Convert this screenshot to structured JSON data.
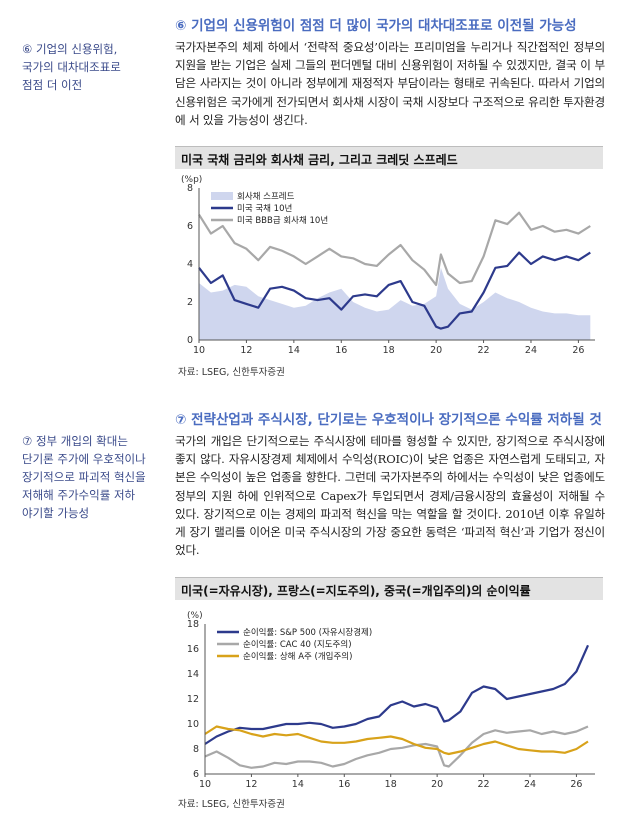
{
  "section1": {
    "heading": "⑥ 기업의 신용위험이 점점 더 많이 국가의 대차대조표로 이전될 가능성",
    "side_note": [
      "⑥ 기업의 신용위험,",
      "국가의 대차대조표로",
      "점점 더 이전"
    ],
    "body": "국가자본주의 체제 하에서 ‘전략적 중요성’이라는 프리미엄을 누리거나 직간접적인 정부의 지원을 받는 기업은 실제 그들의 펀더멘털 대비 신용위험이 저하될 수 있겠지만, 결국 이 부담은 사라지는 것이 아니라 정부에게 재정적자 부담이라는 형태로 귀속된다. 따라서 기업의 신용위험은 국가에게 전가되면서 회사채 시장이 국채 시장보다 구조적으로 유리한 투자환경에 서 있을 가능성이 생긴다."
  },
  "chart1": {
    "title": "미국 국채 금리와 회사채 금리, 그리고 크레딧 스프레드",
    "source": "자료: LSEG, 신한투자증권"
  },
  "section2": {
    "heading": "⑦ 전략산업과 주식시장, 단기로는 우호적이나 장기적으론 수익률 저하될 것",
    "side_note": [
      "⑦ 정부 개입의 확대는",
      "단기론 주가에 우호적이나",
      "장기적으로 파괴적 혁신을",
      "저해해 주가수익률 저하",
      "야기할 가능성"
    ],
    "body": "국가의 개입은 단기적으로는 주식시장에 테마를 형성할 수 있지만, 장기적으로 주식시장에 좋지 않다. 자유시장경제 체제에서 수익성(ROIC)이 낮은 업종은 자연스럽게 도태되고, 자본은 수익성이 높은 업종을 향한다. 그런데 국가자본주의 하에서는 수익성이 낮은 업종에도 정부의 지원 하에 인위적으로 Capex가 투입되면서 경제/금융시장의 효율성이 저해될 수 있다. 장기적으로 이는 경제의 파괴적 혁신을 막는 역할을 할 것이다. 2010년 이후 유일하게 장기 랠리를 이어온 미국 주식시장의 가장 중요한 동력은 ‘파괴적 혁신’과 기업가 정신이었다."
  },
  "chart2": {
    "title": "미국(=자유시장), 프랑스(=지도주의), 중국(=개입주의)의 순이익률",
    "source": "자료: LSEG, 신한투자증권"
  },
  "chart_data": [
    {
      "type": "line",
      "title": "미국 국채 금리와 회사채 금리, 그리고 크레딧 스프레드",
      "ylabel": "(%p)",
      "xlim": [
        10,
        26.7
      ],
      "ylim": [
        0,
        8
      ],
      "xticks": [
        10,
        12,
        14,
        16,
        18,
        20,
        22,
        24,
        26
      ],
      "yticks": [
        0,
        2,
        4,
        6,
        8
      ],
      "legend": "top-left",
      "series": [
        {
          "name": "회사채 스프레드",
          "render": "area",
          "color": "#cfd6ee",
          "x": [
            10,
            10.5,
            11,
            11.5,
            12,
            12.5,
            13,
            13.5,
            14,
            14.5,
            15,
            15.5,
            16,
            16.5,
            17,
            17.5,
            18,
            18.5,
            19,
            19.5,
            20,
            20.2,
            20.5,
            21,
            21.5,
            22,
            22.5,
            23,
            23.5,
            24,
            24.5,
            25,
            25.5,
            26,
            26.5
          ],
          "values": [
            3.0,
            2.5,
            2.6,
            2.9,
            2.8,
            2.3,
            2.1,
            1.9,
            1.7,
            1.8,
            2.2,
            2.5,
            2.7,
            2.0,
            1.7,
            1.5,
            1.6,
            2.1,
            1.8,
            1.9,
            2.3,
            3.8,
            2.7,
            1.9,
            1.6,
            2.0,
            2.5,
            2.2,
            2.0,
            1.7,
            1.5,
            1.4,
            1.4,
            1.3,
            1.3
          ]
        },
        {
          "name": "미국 국채 10년",
          "render": "line",
          "color": "#2d3a8c",
          "x": [
            10,
            10.5,
            11,
            11.5,
            12,
            12.5,
            13,
            13.5,
            14,
            14.5,
            15,
            15.5,
            16,
            16.5,
            17,
            17.5,
            18,
            18.5,
            19,
            19.5,
            20,
            20.2,
            20.5,
            21,
            21.5,
            22,
            22.5,
            23,
            23.5,
            24,
            24.5,
            25,
            25.5,
            26,
            26.5
          ],
          "values": [
            3.8,
            3.0,
            3.4,
            2.1,
            1.9,
            1.7,
            2.7,
            2.8,
            2.6,
            2.2,
            2.1,
            2.2,
            1.6,
            2.3,
            2.4,
            2.3,
            2.9,
            3.1,
            2.0,
            1.8,
            0.7,
            0.6,
            0.7,
            1.4,
            1.5,
            2.5,
            3.8,
            3.9,
            4.6,
            4.0,
            4.4,
            4.2,
            4.4,
            4.2,
            4.6
          ]
        },
        {
          "name": "미국 BBB급 회사채 10년",
          "render": "line",
          "color": "#a8a8a8",
          "x": [
            10,
            10.5,
            11,
            11.5,
            12,
            12.5,
            13,
            13.5,
            14,
            14.5,
            15,
            15.5,
            16,
            16.5,
            17,
            17.5,
            18,
            18.5,
            19,
            19.5,
            20,
            20.2,
            20.5,
            21,
            21.5,
            22,
            22.5,
            23,
            23.5,
            24,
            24.5,
            25,
            25.5,
            26,
            26.5
          ],
          "values": [
            6.6,
            5.6,
            6.0,
            5.1,
            4.8,
            4.2,
            4.9,
            4.7,
            4.4,
            4.0,
            4.4,
            4.8,
            4.4,
            4.3,
            4.0,
            3.9,
            4.5,
            5.0,
            4.2,
            3.7,
            2.9,
            4.5,
            3.5,
            3.0,
            3.1,
            4.4,
            6.3,
            6.1,
            6.7,
            5.8,
            6.0,
            5.7,
            5.8,
            5.6,
            6.0
          ]
        }
      ]
    },
    {
      "type": "line",
      "title": "미국(=자유시장), 프랑스(=지도주의), 중국(=개입주의)의 순이익률",
      "ylabel": "(%)",
      "xlim": [
        10,
        26.8
      ],
      "ylim": [
        6,
        18
      ],
      "xticks": [
        10,
        12,
        14,
        16,
        18,
        20,
        22,
        24,
        26
      ],
      "yticks": [
        6,
        8,
        10,
        12,
        14,
        16,
        18
      ],
      "legend": "top-left",
      "series": [
        {
          "name": "순이익률: S&P 500 (자유시장경제)",
          "color": "#2d3a8c",
          "x": [
            10,
            10.5,
            11,
            11.5,
            12,
            12.5,
            13,
            13.5,
            14,
            14.5,
            15,
            15.5,
            16,
            16.5,
            17,
            17.5,
            18,
            18.5,
            19,
            19.5,
            20,
            20.3,
            20.5,
            21,
            21.5,
            22,
            22.5,
            23,
            23.5,
            24,
            24.5,
            25,
            25.5,
            26,
            26.5
          ],
          "values": [
            8.4,
            9.0,
            9.4,
            9.7,
            9.6,
            9.6,
            9.8,
            10.0,
            10.0,
            10.1,
            10.0,
            9.7,
            9.8,
            10.0,
            10.4,
            10.6,
            11.5,
            11.8,
            11.4,
            11.6,
            11.3,
            10.2,
            10.3,
            11.0,
            12.5,
            13.0,
            12.8,
            12.0,
            12.2,
            12.4,
            12.6,
            12.8,
            13.2,
            14.2,
            16.3
          ]
        },
        {
          "name": "순이익률: CAC 40 (지도주의)",
          "color": "#a8a8a8",
          "x": [
            10,
            10.5,
            11,
            11.5,
            12,
            12.5,
            13,
            13.5,
            14,
            14.5,
            15,
            15.5,
            16,
            16.5,
            17,
            17.5,
            18,
            18.5,
            19,
            19.5,
            20,
            20.3,
            20.5,
            21,
            21.5,
            22,
            22.5,
            23,
            23.5,
            24,
            24.5,
            25,
            25.5,
            26,
            26.5
          ],
          "values": [
            7.4,
            7.8,
            7.3,
            6.7,
            6.5,
            6.6,
            6.9,
            6.8,
            7.0,
            7.0,
            6.9,
            6.6,
            6.8,
            7.2,
            7.5,
            7.7,
            8.0,
            8.1,
            8.3,
            8.4,
            8.2,
            6.7,
            6.6,
            7.5,
            8.5,
            9.2,
            9.5,
            9.3,
            9.4,
            9.5,
            9.2,
            9.4,
            9.2,
            9.4,
            9.8
          ]
        },
        {
          "name": "순이익률: 상해 A주 (개입주의)",
          "color": "#d8a21a",
          "x": [
            10,
            10.5,
            11,
            11.5,
            12,
            12.5,
            13,
            13.5,
            14,
            14.5,
            15,
            15.5,
            16,
            16.5,
            17,
            17.5,
            18,
            18.5,
            19,
            19.5,
            20,
            20.3,
            20.5,
            21,
            21.5,
            22,
            22.5,
            23,
            23.5,
            24,
            24.5,
            25,
            25.5,
            26,
            26.5
          ],
          "values": [
            9.2,
            9.8,
            9.6,
            9.5,
            9.2,
            9.0,
            9.2,
            9.1,
            9.2,
            8.9,
            8.6,
            8.5,
            8.5,
            8.6,
            8.8,
            8.9,
            9.0,
            8.8,
            8.4,
            8.1,
            8.0,
            7.7,
            7.6,
            7.8,
            8.1,
            8.4,
            8.6,
            8.3,
            8.0,
            7.9,
            7.8,
            7.8,
            7.7,
            8.0,
            8.6
          ]
        }
      ]
    }
  ]
}
